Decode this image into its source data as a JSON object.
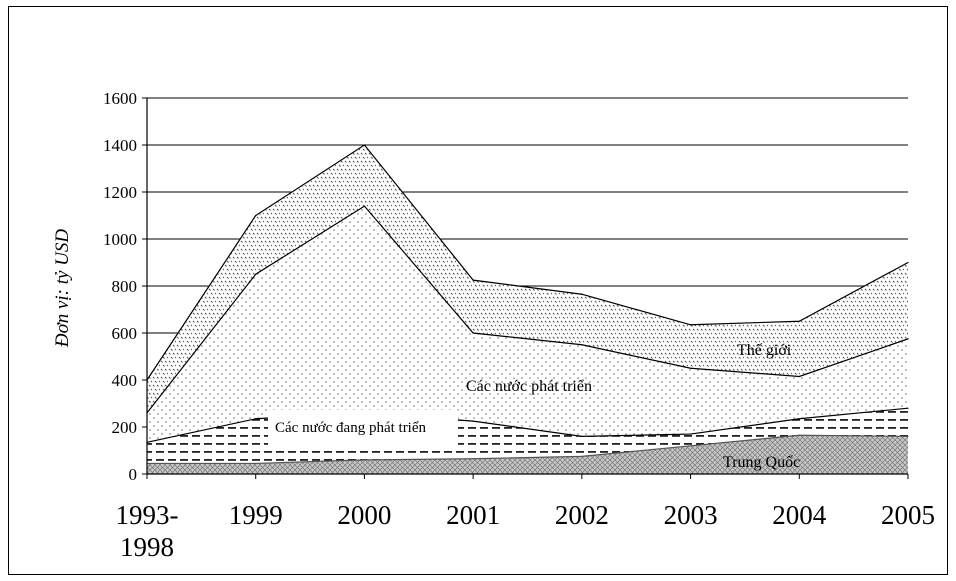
{
  "chart_data": {
    "type": "area",
    "title": "",
    "xlabel": "",
    "ylabel": "Đơn vị: tỷ USD",
    "ylim": [
      0,
      1600
    ],
    "yticks": [
      0,
      200,
      400,
      600,
      800,
      1000,
      1200,
      1400,
      1600
    ],
    "categories": [
      "1993-1998",
      "1999",
      "2000",
      "2001",
      "2002",
      "2003",
      "2004",
      "2005"
    ],
    "category_lines": [
      [
        "1993-",
        "1998"
      ],
      [
        "1999"
      ],
      [
        "2000"
      ],
      [
        "2001"
      ],
      [
        "2002"
      ],
      [
        "2003"
      ],
      [
        "2004"
      ],
      [
        "2005"
      ]
    ],
    "grid": true,
    "series": [
      {
        "name": "Thế giới",
        "values": [
          400,
          1100,
          1400,
          825,
          765,
          635,
          650,
          900
        ]
      },
      {
        "name": "Các nước phát triển",
        "values": [
          260,
          850,
          1140,
          600,
          550,
          450,
          415,
          575
        ]
      },
      {
        "name": "Các nước đang phát triển",
        "values": [
          135,
          235,
          260,
          225,
          160,
          170,
          235,
          280
        ]
      },
      {
        "name": "Trung Quốc",
        "values": [
          45,
          45,
          60,
          65,
          75,
          120,
          165,
          160
        ]
      }
    ]
  }
}
